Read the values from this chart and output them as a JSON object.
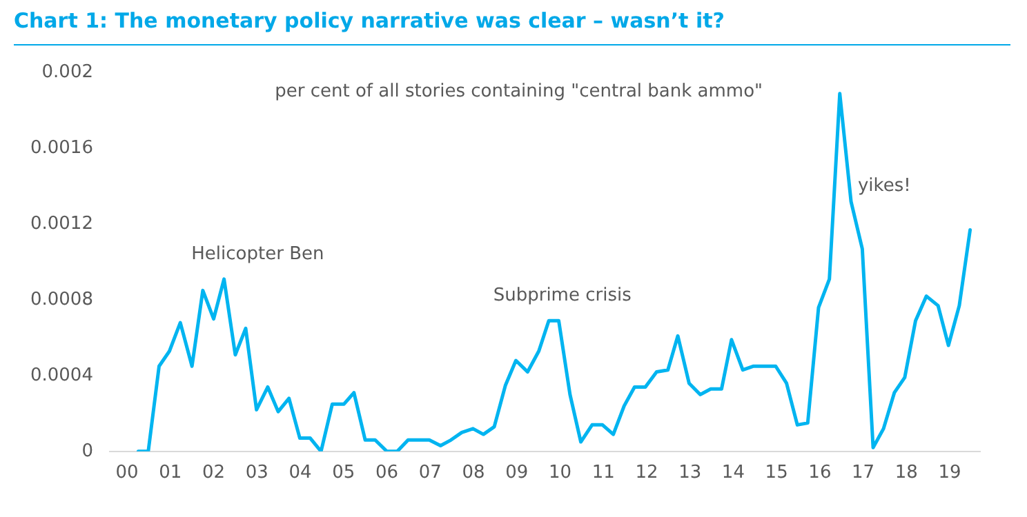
{
  "chart_data": {
    "type": "line",
    "title": "Chart 1: The monetary policy narrative was clear – wasn’t it?",
    "x": [
      2000.26,
      2000.49,
      2000.74,
      2000.98,
      2001.23,
      2001.5,
      2001.75,
      2002.0,
      2002.24,
      2002.5,
      2002.74,
      2002.99,
      2003.25,
      2003.49,
      2003.74,
      2003.99,
      2004.23,
      2004.48,
      2004.74,
      2005.01,
      2005.24,
      2005.5,
      2005.73,
      2006.0,
      2006.24,
      2006.49,
      2006.73,
      2006.98,
      2007.24,
      2007.48,
      2007.73,
      2007.99,
      2008.23,
      2008.48,
      2008.74,
      2008.98,
      2009.25,
      2009.51,
      2009.74,
      2009.97,
      2010.23,
      2010.48,
      2010.74,
      2010.98,
      2011.23,
      2011.48,
      2011.72,
      2011.97,
      2012.23,
      2012.49,
      2012.72,
      2012.98,
      2013.24,
      2013.48,
      2013.73,
      2013.96,
      2014.22,
      2014.47,
      2014.73,
      2014.98,
      2015.23,
      2015.48,
      2015.72,
      2015.97,
      2016.22,
      2016.46,
      2016.72,
      2016.98,
      2017.23,
      2017.47,
      2017.72,
      2017.96,
      2018.21,
      2018.46,
      2018.73,
      2018.97,
      2019.22,
      2019.47
    ],
    "series": [
      {
        "color": "#00b4f0",
        "values": [
          0,
          0,
          0.00045,
          0.00053,
          0.00068,
          0.00045,
          0.00085,
          0.0007,
          0.00091,
          0.00051,
          0.00065,
          0.00022,
          0.00034,
          0.00021,
          0.00028,
          7e-05,
          7e-05,
          0,
          0.00025,
          0.00025,
          0.00031,
          6e-05,
          6e-05,
          0,
          0,
          6e-05,
          6e-05,
          6e-05,
          3e-05,
          6e-05,
          0.0001,
          0.00012,
          9e-05,
          0.00013,
          0.00035,
          0.00048,
          0.00042,
          0.00053,
          0.00069,
          0.00069,
          0.0003,
          5e-05,
          0.00014,
          0.00014,
          9e-05,
          0.00024,
          0.00034,
          0.00034,
          0.00042,
          0.00043,
          0.00061,
          0.00036,
          0.0003,
          0.00033,
          0.00033,
          0.00059,
          0.00043,
          0.00045,
          0.00045,
          0.00045,
          0.00036,
          0.00014,
          0.00015,
          0.00076,
          0.00091,
          0.00189,
          0.00132,
          0.00107,
          2e-05,
          0.00012,
          0.00031,
          0.00039,
          0.00069,
          0.00082,
          0.00077,
          0.00056,
          0.00077,
          0.00117
        ]
      }
    ],
    "xticks": [
      {
        "value": 2000,
        "label": "00"
      },
      {
        "value": 2001,
        "label": "01"
      },
      {
        "value": 2002,
        "label": "02"
      },
      {
        "value": 2003,
        "label": "03"
      },
      {
        "value": 2004,
        "label": "04"
      },
      {
        "value": 2005,
        "label": "05"
      },
      {
        "value": 2006,
        "label": "06"
      },
      {
        "value": 2007,
        "label": "07"
      },
      {
        "value": 2008,
        "label": "08"
      },
      {
        "value": 2009,
        "label": "09"
      },
      {
        "value": 2010,
        "label": "10"
      },
      {
        "value": 2011,
        "label": "11"
      },
      {
        "value": 2012,
        "label": "12"
      },
      {
        "value": 2013,
        "label": "13"
      },
      {
        "value": 2014,
        "label": "14"
      },
      {
        "value": 2015,
        "label": "15"
      },
      {
        "value": 2016,
        "label": "16"
      },
      {
        "value": 2017,
        "label": "17"
      },
      {
        "value": 2018,
        "label": "18"
      },
      {
        "value": 2019,
        "label": "19"
      }
    ],
    "xlim": [
      1999.6,
      2019.7
    ],
    "ylim": [
      0,
      0.002
    ],
    "yticks": [
      0,
      0.0004,
      0.0008,
      0.0012,
      0.0016,
      0.002
    ],
    "grid": false,
    "legend": false,
    "marker": "none",
    "line_style": "solid",
    "annotations": [
      "per cent of all stories containing \"central bank ammo\"",
      "Helicopter Ben",
      "Subprime crisis",
      "yikes!"
    ]
  }
}
